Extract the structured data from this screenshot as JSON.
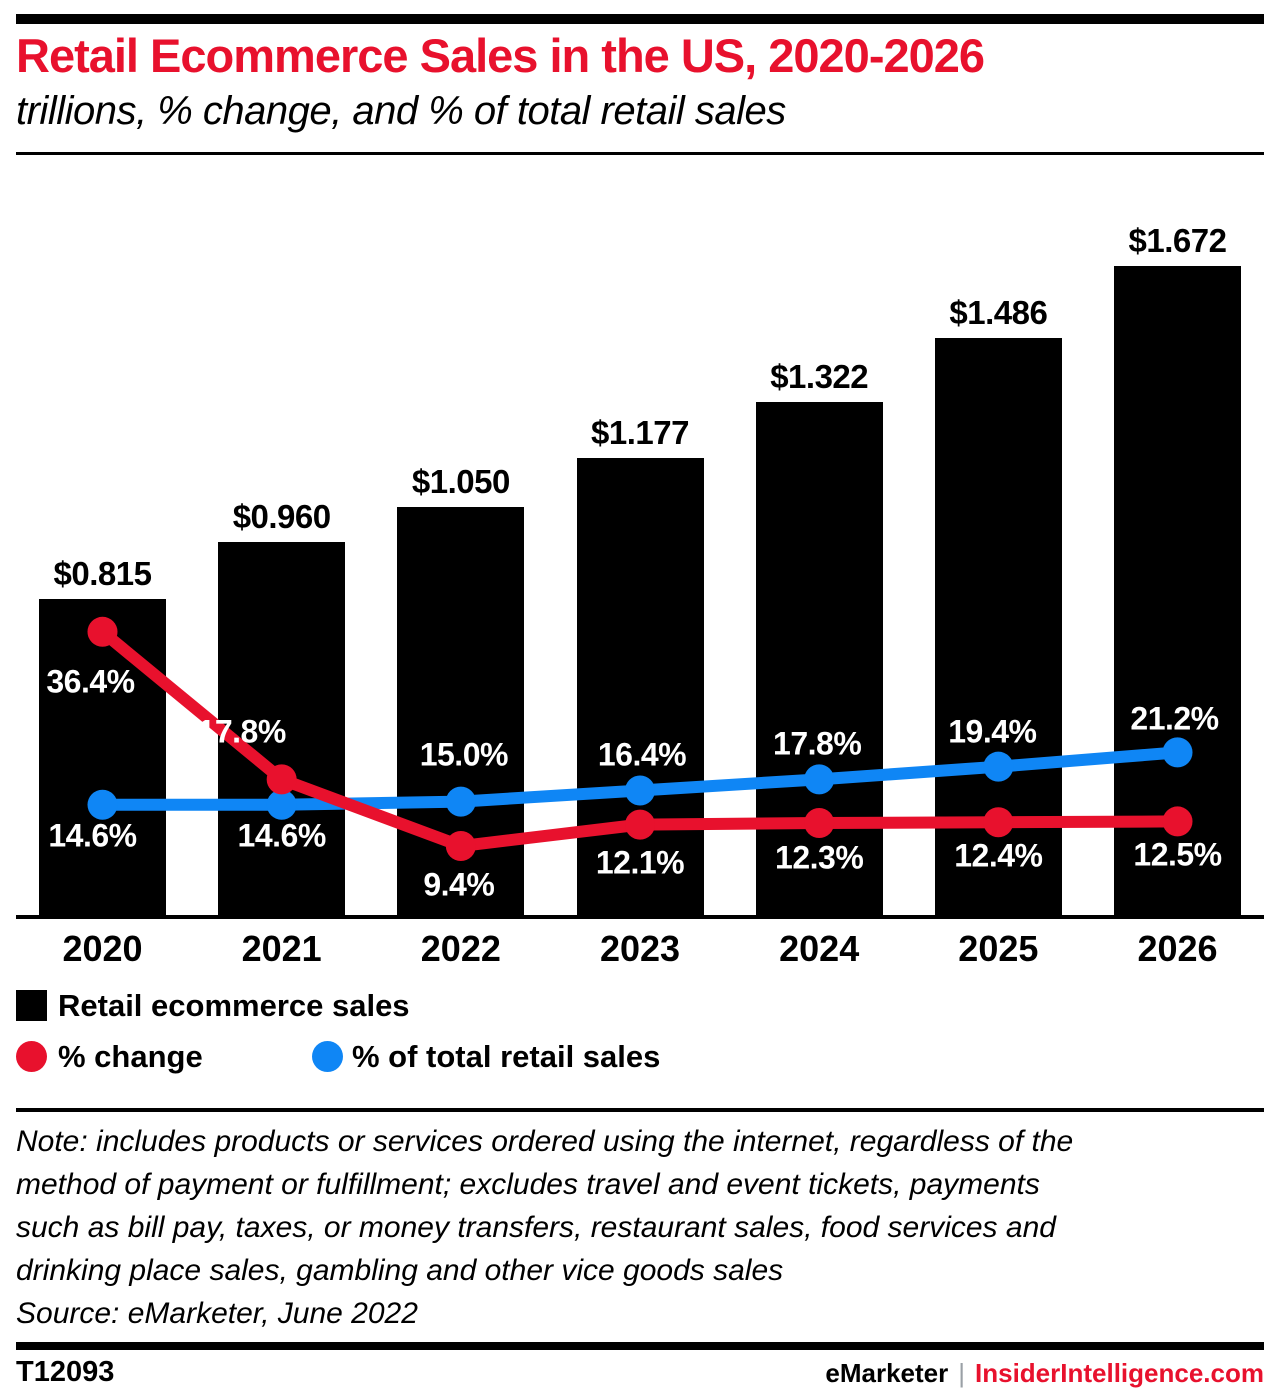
{
  "header": {
    "title": "Retail Ecommerce Sales in the US, 2020-2026",
    "subtitle": "trillions, % change, and % of total retail sales"
  },
  "chart_data": {
    "type": "bar",
    "title": "Retail Ecommerce Sales in the US, 2020-2026",
    "subtitle": "trillions, % change, and % of total retail sales",
    "categories": [
      "2020",
      "2021",
      "2022",
      "2023",
      "2024",
      "2025",
      "2026"
    ],
    "bar_series": {
      "name": "Retail ecommerce sales",
      "unit": "trillions of US dollars",
      "values": [
        0.815,
        0.96,
        1.05,
        1.177,
        1.322,
        1.486,
        1.672
      ],
      "labels": [
        "$0.815",
        "$0.960",
        "$1.050",
        "$1.177",
        "$1.322",
        "$1.486",
        "$1.672"
      ]
    },
    "line_series": [
      {
        "name": "% change",
        "color_key": "red",
        "values": [
          36.4,
          17.8,
          9.4,
          12.1,
          12.3,
          12.4,
          12.5
        ],
        "labels": [
          "36.4%",
          "17.8%",
          "9.4%",
          "12.1%",
          "12.3%",
          "12.4%",
          "12.5%"
        ]
      },
      {
        "name": "% of total retail sales",
        "color_key": "blue",
        "values": [
          14.6,
          14.6,
          15.0,
          16.4,
          17.8,
          19.4,
          21.2
        ],
        "labels": [
          "14.6%",
          "14.6%",
          "15.0%",
          "16.4%",
          "17.8%",
          "19.4%",
          "21.2%"
        ]
      }
    ],
    "label_offsets": {
      "red": [
        [
          -12,
          50
        ],
        [
          -40,
          -47
        ],
        [
          -2,
          39
        ],
        [
          0,
          38
        ],
        [
          0,
          35
        ],
        [
          0,
          34
        ],
        [
          0,
          34
        ]
      ],
      "blue": [
        [
          -10,
          31
        ],
        [
          0,
          31
        ],
        [
          3,
          -47
        ],
        [
          2,
          -35
        ],
        [
          -2,
          -35
        ],
        [
          -6,
          -35
        ],
        [
          -3,
          -33
        ]
      ]
    },
    "ylim_bars": [
      0,
      1.8
    ],
    "ylim_lines": [
      0,
      40
    ],
    "grid": false,
    "legend_position": "bottom-left"
  },
  "legend": {
    "bar_label": "Retail ecommerce sales",
    "red_label": "% change",
    "blue_label": "% of total retail sales"
  },
  "note": {
    "lines": [
      "Note: includes products or services ordered using the internet, regardless of the",
      "method of payment or fulfillment; excludes travel and event tickets, payments",
      "such as bill pay, taxes, or money transfers, restaurant sales, food services and",
      "drinking place sales, gambling and other vice goods sales"
    ],
    "source": "Source: eMarketer, June 2022"
  },
  "footer": {
    "chart_id": "T12093",
    "brand_left": "eMarketer",
    "separator": "|",
    "brand_right": "InsiderIntelligence.com"
  },
  "colors": {
    "red": "#e8112d",
    "blue": "#0f86f5",
    "black": "#000000",
    "label_white": "#ffffff"
  }
}
